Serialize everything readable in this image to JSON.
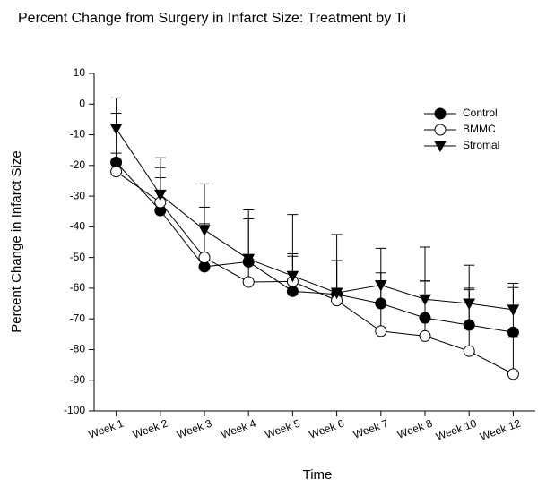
{
  "chart_data": {
    "type": "line",
    "title": "Percent Change from Surgery in Infarct Size: Treatment by Ti",
    "x_label": "Time",
    "y_label": "Percent Change in Infarct Size",
    "categories": [
      "Week 1",
      "Week 2",
      "Week 3",
      "Week 4",
      "Week 5",
      "Week 6",
      "Week 7",
      "Week 8",
      "Week 10",
      "Week 12"
    ],
    "ylim": [
      -100,
      10
    ],
    "yticks": [
      -100,
      -90,
      -80,
      -70,
      -60,
      -50,
      -40,
      -30,
      -20,
      -10,
      0,
      10
    ],
    "legend": "upper-right",
    "series": [
      {
        "name": "Control",
        "color": "#000000",
        "marker": "circle",
        "values": [
          -19,
          -34.7,
          -53,
          -51.4,
          -61,
          -62,
          -65,
          -69.7,
          -72,
          -74.4
        ],
        "errors": [
          16,
          14,
          19.4,
          14,
          11.4,
          11,
          10,
          12,
          12,
          14.6
        ]
      },
      {
        "name": "BMMC",
        "color": "#000000",
        "marker": "circle-open",
        "values": [
          -22,
          -32,
          -50,
          -58,
          -57.8,
          -64,
          -74,
          -75.6,
          -80.5,
          -88
        ],
        "errors": [
          6,
          8,
          11,
          9,
          9,
          13,
          16,
          18,
          20,
          12
        ]
      },
      {
        "name": "Stromal",
        "color": "#000000",
        "marker": "triangle-down",
        "values": [
          -8,
          -29.5,
          -41,
          -50.5,
          -56,
          -61.5,
          -59,
          -63.6,
          -65,
          -67
        ],
        "errors": [
          10,
          12,
          15,
          16,
          20,
          19,
          12,
          17,
          12.5,
          8.6
        ]
      }
    ]
  }
}
